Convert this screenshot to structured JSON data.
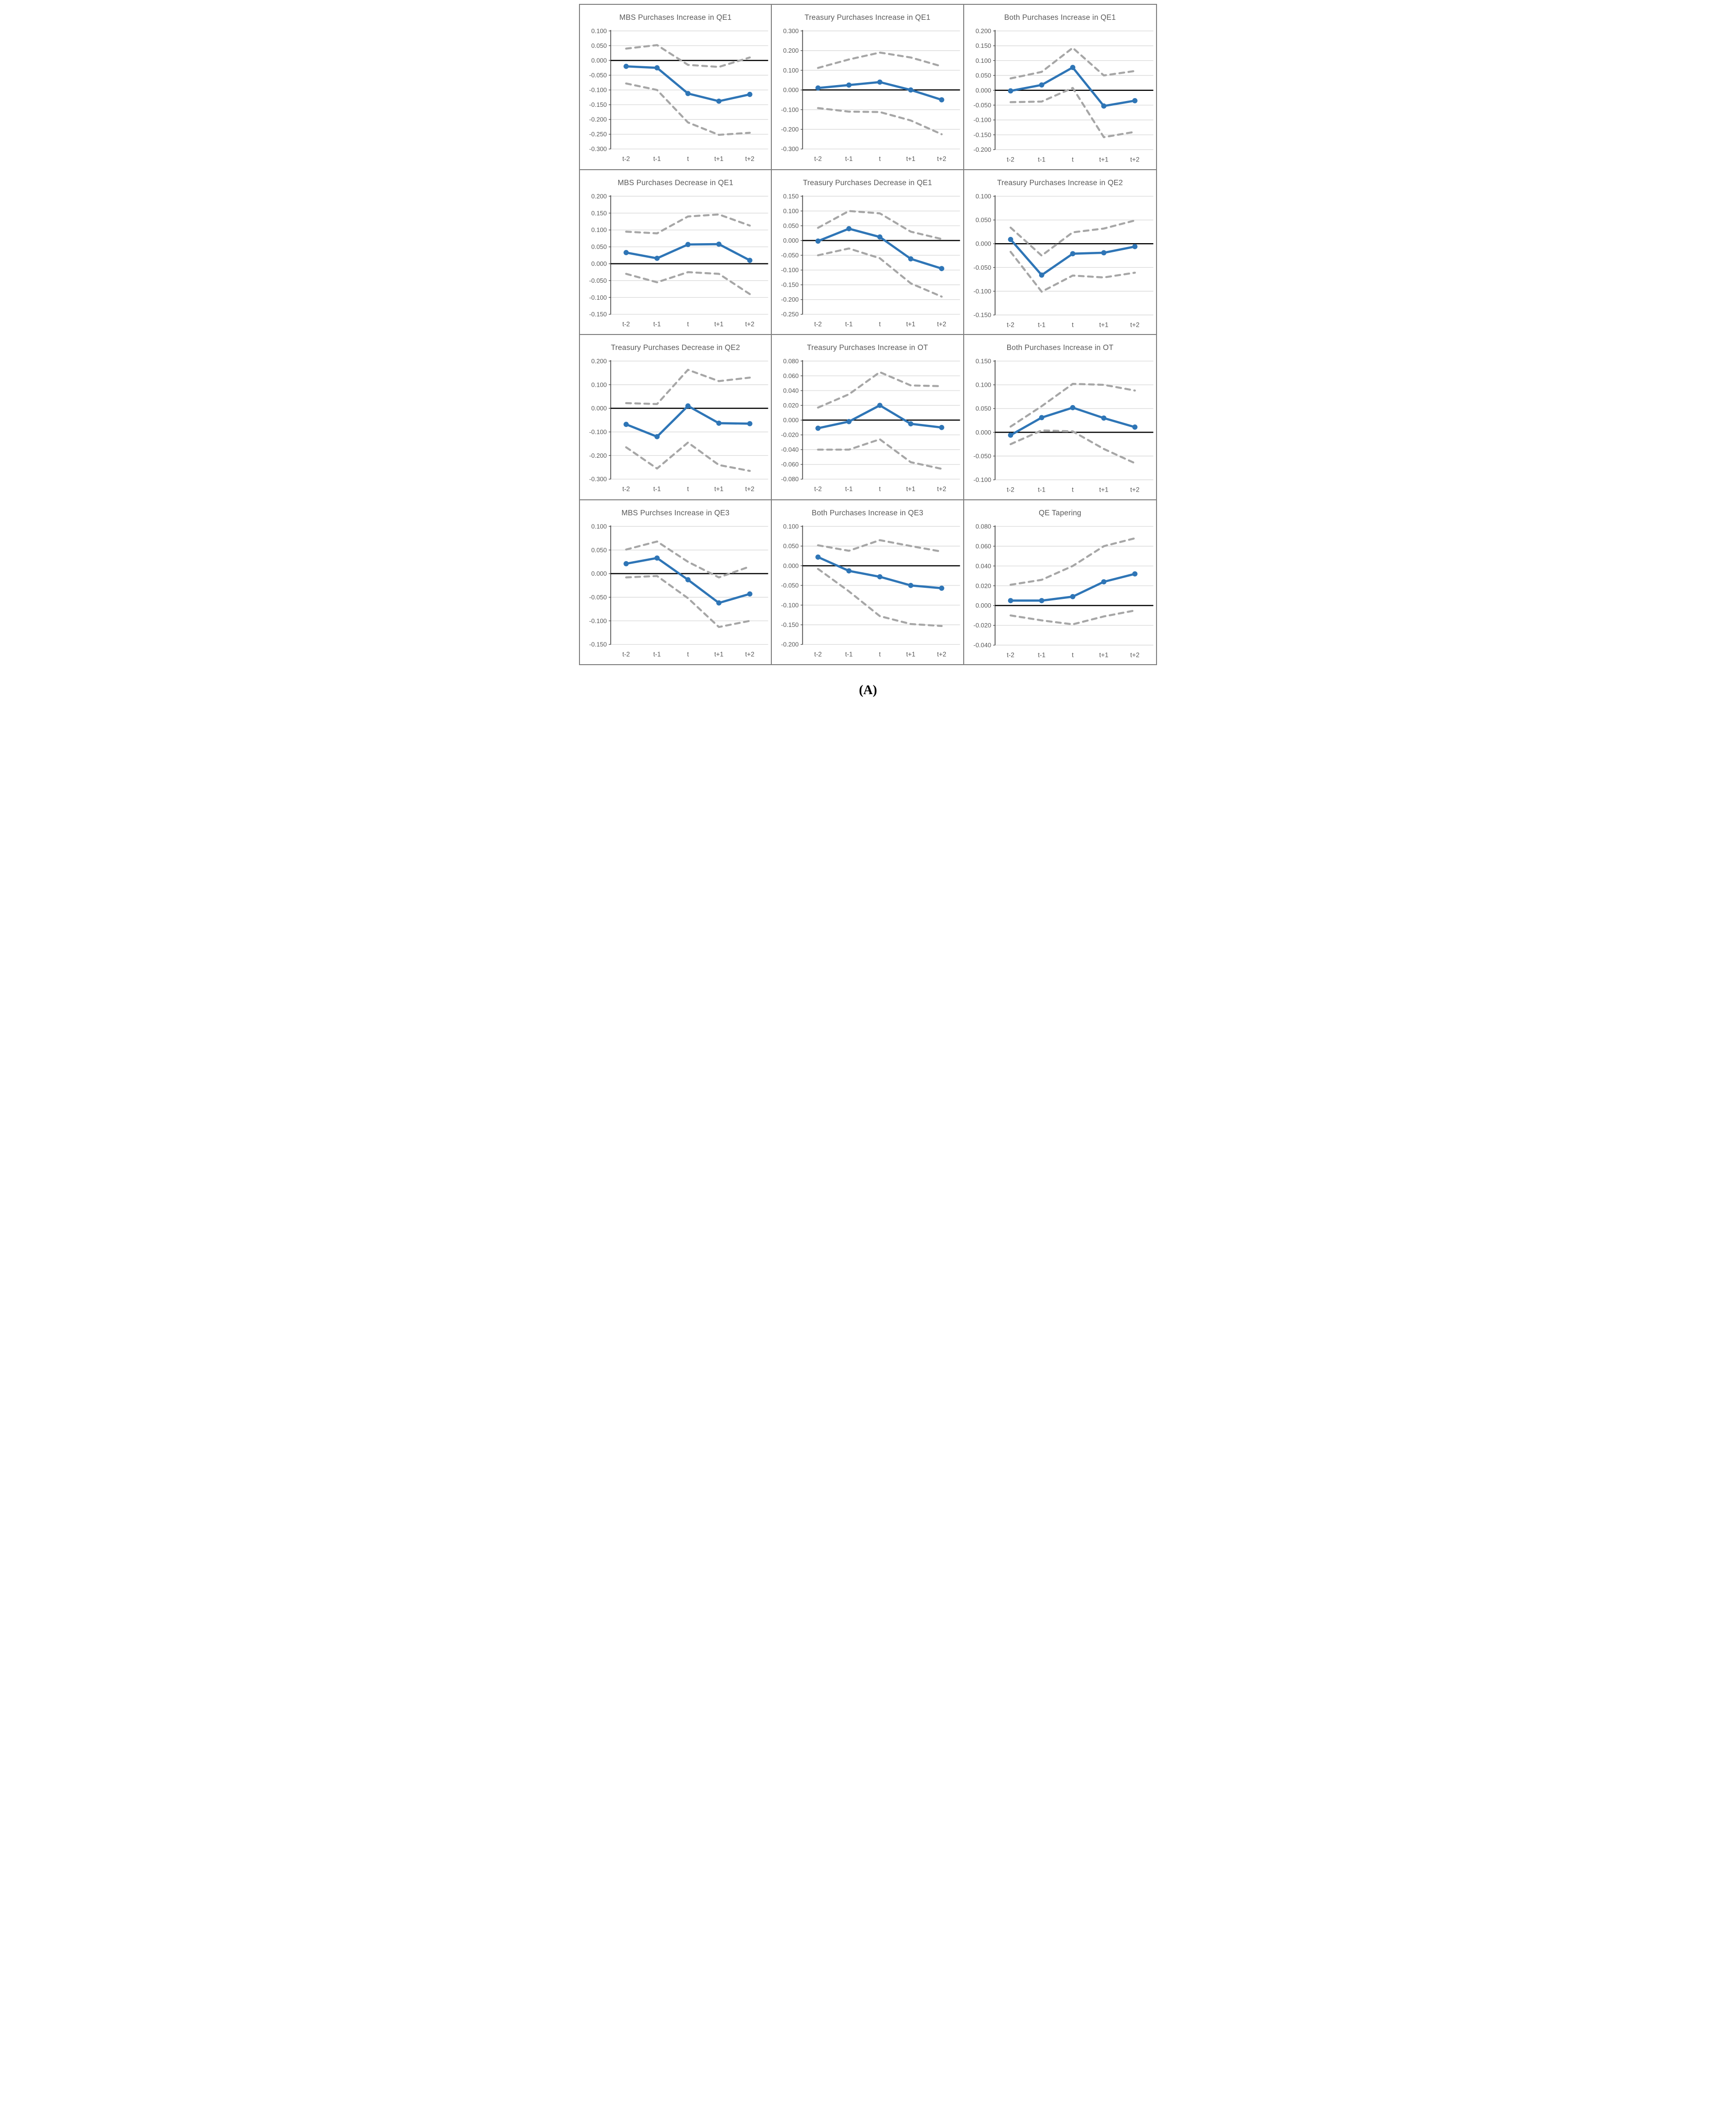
{
  "figure": {
    "caption": "(A)"
  },
  "x_labels": [
    "t-2",
    "t-1",
    "t",
    "t+1",
    "t+2"
  ],
  "colors": {
    "line": "#2E75B6",
    "band": "#A6A6A6",
    "grid": "#D9D9D9",
    "zero_line": "#000000",
    "axis": "#404040",
    "title": "#595959",
    "tick": "#595959",
    "panel_border": "#7F7F7F"
  },
  "chart_data": [
    {
      "type": "line",
      "title": "MBS Purchases Increase in QE1",
      "y_max": 0.1,
      "y_min": -0.3,
      "y_ticks": [
        "0.100",
        "0.050",
        "0.000",
        "-0.050",
        "-0.100",
        "-0.150",
        "-0.200",
        "-0.250",
        "-0.300"
      ],
      "grid": true,
      "legend": false,
      "series": {
        "main": [
          -0.02,
          -0.025,
          -0.112,
          -0.138,
          -0.115
        ],
        "upper_ci": [
          0.04,
          0.052,
          -0.015,
          -0.022,
          0.01
        ],
        "lower_ci": [
          -0.078,
          -0.1,
          -0.21,
          -0.252,
          -0.245
        ]
      }
    },
    {
      "type": "line",
      "title": "Treasury Purchases Increase in QE1",
      "y_max": 0.3,
      "y_min": -0.3,
      "y_ticks": [
        "0.300",
        "0.200",
        "0.100",
        "0.000",
        "-0.100",
        "-0.200",
        "-0.300"
      ],
      "grid": true,
      "legend": false,
      "series": {
        "main": [
          0.01,
          0.025,
          0.04,
          0.0,
          -0.05
        ],
        "upper_ci": [
          0.112,
          0.155,
          0.19,
          0.165,
          0.12
        ],
        "lower_ci": [
          -0.092,
          -0.11,
          -0.112,
          -0.155,
          -0.225
        ]
      }
    },
    {
      "type": "line",
      "title": "Both Purchases Increase in QE1",
      "y_max": 0.2,
      "y_min": -0.2,
      "y_ticks": [
        "0.200",
        "0.150",
        "0.100",
        "0.050",
        "0.000",
        "-0.050",
        "-0.100",
        "-0.150",
        "-0.200"
      ],
      "grid": true,
      "legend": false,
      "series": {
        "main": [
          -0.002,
          0.018,
          0.077,
          -0.053,
          -0.035
        ],
        "upper_ci": [
          0.04,
          0.062,
          0.143,
          0.05,
          0.065
        ],
        "lower_ci": [
          -0.04,
          -0.038,
          0.008,
          -0.158,
          -0.14
        ]
      }
    },
    {
      "type": "line",
      "title": "MBS Purchases Decrease in QE1",
      "y_max": 0.2,
      "y_min": -0.15,
      "y_ticks": [
        "0.200",
        "0.150",
        "0.100",
        "0.050",
        "0.000",
        "-0.050",
        "-0.100",
        "-0.150"
      ],
      "grid": true,
      "legend": false,
      "series": {
        "main": [
          0.033,
          0.016,
          0.057,
          0.058,
          0.01
        ],
        "upper_ci": [
          0.095,
          0.09,
          0.14,
          0.146,
          0.113
        ],
        "lower_ci": [
          -0.03,
          -0.055,
          -0.025,
          -0.03,
          -0.09
        ]
      }
    },
    {
      "type": "line",
      "title": "Treasury Purchases Decrease in QE1",
      "y_max": 0.15,
      "y_min": -0.25,
      "y_ticks": [
        "0.150",
        "0.100",
        "0.050",
        "0.000",
        "-0.050",
        "-0.100",
        "-0.150",
        "-0.200",
        "-0.250"
      ],
      "grid": true,
      "legend": false,
      "series": {
        "main": [
          -0.002,
          0.04,
          0.012,
          -0.062,
          -0.095
        ],
        "upper_ci": [
          0.043,
          0.1,
          0.092,
          0.03,
          0.005
        ],
        "lower_ci": [
          -0.05,
          -0.027,
          -0.06,
          -0.145,
          -0.19
        ]
      }
    },
    {
      "type": "line",
      "title": "Treasury Purchases Increase in QE2",
      "y_max": 0.1,
      "y_min": -0.15,
      "y_ticks": [
        "0.100",
        "0.050",
        "0.000",
        "-0.050",
        "-0.100",
        "-0.150"
      ],
      "grid": true,
      "legend": false,
      "series": {
        "main": [
          0.009,
          -0.066,
          -0.021,
          -0.019,
          -0.006
        ],
        "upper_ci": [
          0.034,
          -0.025,
          0.024,
          0.032,
          0.049
        ],
        "lower_ci": [
          -0.017,
          -0.101,
          -0.067,
          -0.071,
          -0.061
        ]
      }
    },
    {
      "type": "line",
      "title": "Treasury Purchases Decrease in QE2",
      "y_max": 0.2,
      "y_min": -0.3,
      "y_ticks": [
        "0.200",
        "0.100",
        "0.000",
        "-0.100",
        "-0.200",
        "-0.300"
      ],
      "grid": true,
      "legend": false,
      "series": {
        "main": [
          -0.068,
          -0.12,
          0.01,
          -0.063,
          -0.065
        ],
        "upper_ci": [
          0.022,
          0.018,
          0.163,
          0.115,
          0.13
        ],
        "lower_ci": [
          -0.165,
          -0.255,
          -0.145,
          -0.24,
          -0.265
        ]
      }
    },
    {
      "type": "line",
      "title": "Treasury Purchases Increase in OT",
      "y_max": 0.08,
      "y_min": -0.08,
      "y_ticks": [
        "0.080",
        "0.060",
        "0.040",
        "0.020",
        "0.000",
        "-0.020",
        "-0.040",
        "-0.060",
        "-0.080"
      ],
      "grid": true,
      "legend": false,
      "series": {
        "main": [
          -0.011,
          -0.002,
          0.02,
          -0.005,
          -0.01
        ],
        "upper_ci": [
          0.017,
          0.035,
          0.065,
          0.047,
          0.046
        ],
        "lower_ci": [
          -0.04,
          -0.04,
          -0.026,
          -0.057,
          -0.066
        ]
      }
    },
    {
      "type": "line",
      "title": "Both Purchases Increase in OT",
      "y_max": 0.15,
      "y_min": -0.1,
      "y_ticks": [
        "0.150",
        "0.100",
        "0.050",
        "0.000",
        "-0.050",
        "-0.100"
      ],
      "grid": true,
      "legend": false,
      "series": {
        "main": [
          -0.006,
          0.031,
          0.052,
          0.03,
          0.011
        ],
        "upper_ci": [
          0.012,
          0.055,
          0.102,
          0.1,
          0.088
        ],
        "lower_ci": [
          -0.025,
          0.004,
          0.002,
          -0.035,
          -0.065
        ]
      }
    },
    {
      "type": "line",
      "title": "MBS Purchses Increase in QE3",
      "y_max": 0.1,
      "y_min": -0.15,
      "y_ticks": [
        "0.100",
        "0.050",
        "0.000",
        "-0.050",
        "-0.100",
        "-0.150"
      ],
      "grid": true,
      "legend": false,
      "series": {
        "main": [
          0.021,
          0.033,
          -0.013,
          -0.062,
          -0.043
        ],
        "upper_ci": [
          0.051,
          0.068,
          0.025,
          -0.008,
          0.015
        ],
        "lower_ci": [
          -0.008,
          -0.005,
          -0.052,
          -0.113,
          -0.1
        ]
      }
    },
    {
      "type": "line",
      "title": "Both Purchases Increase in QE3",
      "y_max": 0.1,
      "y_min": -0.2,
      "y_ticks": [
        "0.100",
        "0.050",
        "0.000",
        "-0.050",
        "-0.100",
        "-0.150",
        "-0.200"
      ],
      "grid": true,
      "legend": false,
      "series": {
        "main": [
          0.022,
          -0.013,
          -0.028,
          -0.05,
          -0.057
        ],
        "upper_ci": [
          0.052,
          0.038,
          0.065,
          0.05,
          0.036
        ],
        "lower_ci": [
          -0.008,
          -0.065,
          -0.128,
          -0.148,
          -0.153
        ]
      }
    },
    {
      "type": "line",
      "title": "QE Tapering",
      "y_max": 0.08,
      "y_min": -0.04,
      "y_ticks": [
        "0.080",
        "0.060",
        "0.040",
        "0.020",
        "0.000",
        "-0.020",
        "-0.040"
      ],
      "grid": true,
      "legend": false,
      "series": {
        "main": [
          0.005,
          0.005,
          0.009,
          0.024,
          0.032
        ],
        "upper_ci": [
          0.021,
          0.026,
          0.04,
          0.06,
          0.068
        ],
        "lower_ci": [
          -0.01,
          -0.015,
          -0.019,
          -0.011,
          -0.005
        ]
      }
    }
  ]
}
